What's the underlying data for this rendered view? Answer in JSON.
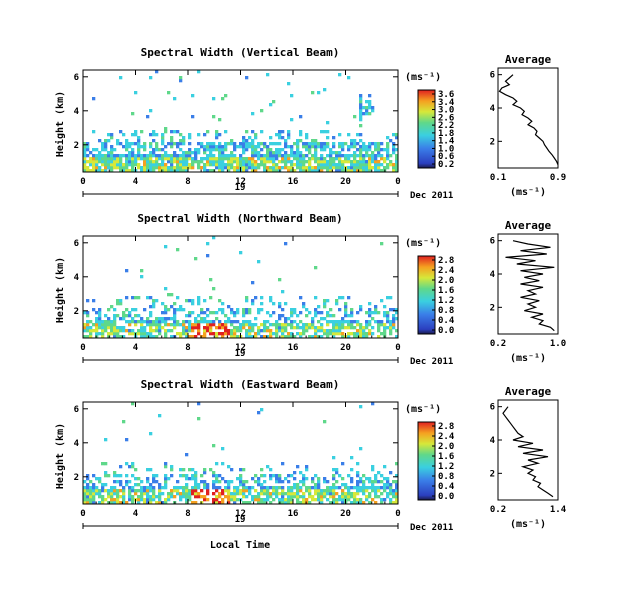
{
  "figure": {
    "x_axis_label": "Local Time"
  },
  "chart_data": [
    {
      "type": "heatmap",
      "title": "Spectral Width (Vertical Beam)",
      "ylabel": "Height (km)",
      "x_ticks": [
        "0",
        "4",
        "8",
        "12",
        "16",
        "20",
        "0"
      ],
      "y_ticks": [
        "2",
        "4",
        "6"
      ],
      "xlim": [
        0,
        24
      ],
      "ylim": [
        0.4,
        6.4
      ],
      "date_day": "19",
      "date_label": "Dec 2011",
      "colorbar": {
        "unit": "(ms⁻¹)",
        "ticks": [
          "3.6",
          "3.4",
          "3.0",
          "2.6",
          "2.2",
          "1.8",
          "1.4",
          "1.0",
          "0.6",
          "0.2"
        ],
        "min": 0,
        "max": 3.6
      },
      "average": {
        "title": "Average",
        "xlabel": "(ms⁻¹)",
        "x_ticks": [
          "0.1",
          "0.9"
        ],
        "xlim": [
          0.1,
          0.9
        ],
        "y_ticks": [
          "2",
          "4",
          "6"
        ],
        "points": [
          [
            0.3,
            6.0
          ],
          [
            0.25,
            5.8
          ],
          [
            0.2,
            5.6
          ],
          [
            0.25,
            5.4
          ],
          [
            0.15,
            5.2
          ],
          [
            0.12,
            5.0
          ],
          [
            0.2,
            4.8
          ],
          [
            0.3,
            4.6
          ],
          [
            0.35,
            4.4
          ],
          [
            0.3,
            4.2
          ],
          [
            0.4,
            4.0
          ],
          [
            0.45,
            3.8
          ],
          [
            0.42,
            3.6
          ],
          [
            0.5,
            3.4
          ],
          [
            0.55,
            3.2
          ],
          [
            0.5,
            3.0
          ],
          [
            0.58,
            2.8
          ],
          [
            0.62,
            2.6
          ],
          [
            0.6,
            2.4
          ],
          [
            0.65,
            2.2
          ],
          [
            0.7,
            2.0
          ],
          [
            0.72,
            1.8
          ],
          [
            0.75,
            1.6
          ],
          [
            0.78,
            1.4
          ],
          [
            0.82,
            1.2
          ],
          [
            0.85,
            1.0
          ],
          [
            0.88,
            0.8
          ],
          [
            0.9,
            0.6
          ]
        ]
      }
    },
    {
      "type": "heatmap",
      "title": "Spectral Width (Northward Beam)",
      "ylabel": "Height (km)",
      "x_ticks": [
        "0",
        "4",
        "8",
        "12",
        "16",
        "20",
        "0"
      ],
      "y_ticks": [
        "2",
        "4",
        "6"
      ],
      "xlim": [
        0,
        24
      ],
      "ylim": [
        0.4,
        6.4
      ],
      "date_day": "19",
      "date_label": "Dec 2011",
      "colorbar": {
        "unit": "(ms⁻¹)",
        "ticks": [
          "2.8",
          "2.4",
          "2.0",
          "1.6",
          "1.2",
          "0.8",
          "0.4",
          "0.0"
        ],
        "min": 0,
        "max": 2.8
      },
      "average": {
        "title": "Average",
        "xlabel": "(ms⁻¹)",
        "x_ticks": [
          "0.2",
          "1.0"
        ],
        "xlim": [
          0.2,
          1.0
        ],
        "y_ticks": [
          "2",
          "4",
          "6"
        ],
        "points": [
          [
            0.4,
            6.0
          ],
          [
            0.6,
            5.8
          ],
          [
            0.9,
            5.6
          ],
          [
            0.5,
            5.4
          ],
          [
            0.85,
            5.2
          ],
          [
            0.3,
            5.0
          ],
          [
            0.7,
            4.8
          ],
          [
            0.45,
            4.6
          ],
          [
            0.95,
            4.4
          ],
          [
            0.5,
            4.2
          ],
          [
            0.8,
            4.0
          ],
          [
            0.55,
            3.8
          ],
          [
            0.75,
            3.6
          ],
          [
            0.5,
            3.4
          ],
          [
            0.8,
            3.2
          ],
          [
            0.6,
            3.0
          ],
          [
            0.7,
            2.8
          ],
          [
            0.5,
            2.6
          ],
          [
            0.75,
            2.4
          ],
          [
            0.6,
            2.2
          ],
          [
            0.7,
            2.0
          ],
          [
            0.55,
            1.8
          ],
          [
            0.8,
            1.6
          ],
          [
            0.65,
            1.4
          ],
          [
            0.8,
            1.2
          ],
          [
            0.75,
            1.0
          ],
          [
            0.9,
            0.8
          ],
          [
            0.95,
            0.6
          ]
        ]
      }
    },
    {
      "type": "heatmap",
      "title": "Spectral Width (Eastward Beam)",
      "ylabel": "Height (km)",
      "x_ticks": [
        "0",
        "4",
        "8",
        "12",
        "16",
        "20",
        "0"
      ],
      "y_ticks": [
        "2",
        "4",
        "6"
      ],
      "xlim": [
        0,
        24
      ],
      "ylim": [
        0.4,
        6.4
      ],
      "date_day": "19",
      "date_label": "Dec 2011",
      "colorbar": {
        "unit": "(ms⁻¹)",
        "ticks": [
          "2.8",
          "2.4",
          "2.0",
          "1.6",
          "1.2",
          "0.8",
          "0.4",
          "0.0"
        ],
        "min": 0,
        "max": 2.8
      },
      "average": {
        "title": "Average",
        "xlabel": "(ms⁻¹)",
        "x_ticks": [
          "0.2",
          "1.4"
        ],
        "xlim": [
          0.2,
          1.4
        ],
        "y_ticks": [
          "2",
          "4",
          "6"
        ],
        "points": [
          [
            0.4,
            6.0
          ],
          [
            0.35,
            5.8
          ],
          [
            0.3,
            5.6
          ],
          [
            0.35,
            5.4
          ],
          [
            0.4,
            5.2
          ],
          [
            0.45,
            5.0
          ],
          [
            0.5,
            4.8
          ],
          [
            0.55,
            4.6
          ],
          [
            0.6,
            4.4
          ],
          [
            0.7,
            4.2
          ],
          [
            0.5,
            4.0
          ],
          [
            0.9,
            3.8
          ],
          [
            0.6,
            3.6
          ],
          [
            1.1,
            3.4
          ],
          [
            0.7,
            3.2
          ],
          [
            1.2,
            3.0
          ],
          [
            0.8,
            2.8
          ],
          [
            1.0,
            2.6
          ],
          [
            0.7,
            2.4
          ],
          [
            0.9,
            2.2
          ],
          [
            0.8,
            2.0
          ],
          [
            0.95,
            1.8
          ],
          [
            0.9,
            1.6
          ],
          [
            1.05,
            1.4
          ],
          [
            1.0,
            1.2
          ],
          [
            1.1,
            1.0
          ],
          [
            1.2,
            0.8
          ],
          [
            1.3,
            0.6
          ]
        ]
      }
    }
  ]
}
